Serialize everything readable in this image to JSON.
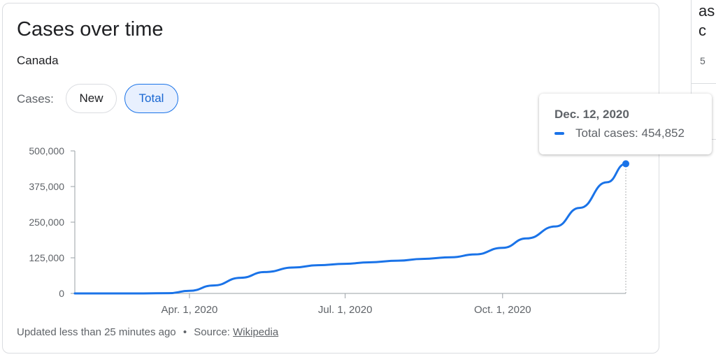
{
  "card": {
    "title": "Cases over time",
    "subtitle": "Canada",
    "cases_label": "Cases:",
    "toggle": {
      "new_label": "New",
      "total_label": "Total",
      "selected": "Total"
    }
  },
  "side_card": {
    "line1": "as",
    "line2": "c",
    "line3": "5"
  },
  "tooltip": {
    "date": "Dec. 12, 2020",
    "series_label": "Total cases",
    "value": "454,852",
    "text": "Total cases: 454,852"
  },
  "footer": {
    "updated": "Updated less than 25 minutes ago",
    "separator": "•",
    "source_label": "Source:",
    "source_link": "Wikipedia"
  },
  "colors": {
    "line": "#1a73e8",
    "axis": "#5f6368",
    "text": "#202124"
  },
  "chart_data": {
    "type": "line",
    "title": "Cases over time",
    "subtitle": "Canada",
    "xlabel": "",
    "ylabel": "",
    "x_range": [
      "2020-01-25",
      "2020-12-12"
    ],
    "ylim": [
      0,
      500000
    ],
    "y_ticks": [
      0,
      125000,
      250000,
      375000,
      500000
    ],
    "y_tick_labels": [
      "0",
      "125,000",
      "250,000",
      "375,000",
      "500,000"
    ],
    "x_ticks": [
      "2020-04-01",
      "2020-07-01",
      "2020-10-01"
    ],
    "x_tick_labels": [
      "Apr. 1, 2020",
      "Jul. 1, 2020",
      "Oct. 1, 2020"
    ],
    "grid": false,
    "series": [
      {
        "name": "Total cases",
        "x": [
          "2020-01-25",
          "2020-02-15",
          "2020-03-05",
          "2020-03-20",
          "2020-04-01",
          "2020-04-15",
          "2020-05-01",
          "2020-05-15",
          "2020-06-01",
          "2020-06-15",
          "2020-07-01",
          "2020-07-15",
          "2020-08-01",
          "2020-08-15",
          "2020-09-01",
          "2020-09-15",
          "2020-10-01",
          "2020-10-15",
          "2020-11-01",
          "2020-11-15",
          "2020-12-01",
          "2020-12-12"
        ],
        "y": [
          0,
          0,
          0,
          1000,
          9000,
          28000,
          55000,
          75000,
          91000,
          99000,
          104000,
          109000,
          115000,
          121000,
          127000,
          137000,
          160000,
          193000,
          235000,
          300000,
          390000,
          454852
        ]
      }
    ],
    "highlight": {
      "x": "2020-12-12",
      "y": 454852
    }
  }
}
